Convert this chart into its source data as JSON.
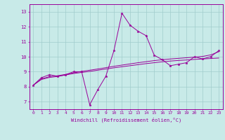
{
  "title": "",
  "xlabel": "Windchill (Refroidissement éolien,°C)",
  "background_color": "#c8eae8",
  "line_color": "#990099",
  "grid_color": "#a0cccc",
  "x_data": [
    0,
    1,
    2,
    3,
    4,
    5,
    6,
    7,
    8,
    9,
    10,
    11,
    12,
    13,
    14,
    15,
    16,
    17,
    18,
    19,
    20,
    21,
    22,
    23
  ],
  "y_main": [
    8.1,
    8.6,
    8.8,
    8.7,
    8.8,
    9.0,
    9.0,
    6.8,
    7.8,
    8.7,
    10.4,
    12.9,
    12.1,
    11.7,
    11.4,
    10.1,
    9.8,
    9.4,
    9.5,
    9.6,
    10.0,
    9.85,
    10.0,
    10.4
  ],
  "y_upper": [
    8.1,
    8.52,
    8.67,
    8.73,
    8.82,
    8.92,
    9.02,
    9.1,
    9.18,
    9.27,
    9.36,
    9.44,
    9.52,
    9.6,
    9.67,
    9.74,
    9.8,
    9.85,
    9.89,
    9.93,
    9.97,
    10.02,
    10.12,
    10.33
  ],
  "y_lower": [
    8.1,
    8.48,
    8.62,
    8.68,
    8.78,
    8.88,
    8.95,
    9.02,
    9.1,
    9.18,
    9.26,
    9.33,
    9.4,
    9.47,
    9.54,
    9.6,
    9.66,
    9.71,
    9.75,
    9.78,
    9.82,
    9.85,
    9.88,
    9.91
  ],
  "ylim": [
    6.5,
    13.5
  ],
  "xlim": [
    -0.5,
    23.5
  ],
  "yticks": [
    7,
    8,
    9,
    10,
    11,
    12,
    13
  ],
  "xticks": [
    0,
    1,
    2,
    3,
    4,
    5,
    6,
    7,
    8,
    9,
    10,
    11,
    12,
    13,
    14,
    15,
    16,
    17,
    18,
    19,
    20,
    21,
    22,
    23
  ],
  "tick_fontsize": 4.5,
  "xlabel_fontsize": 5.0,
  "ytick_fontsize": 5.0
}
